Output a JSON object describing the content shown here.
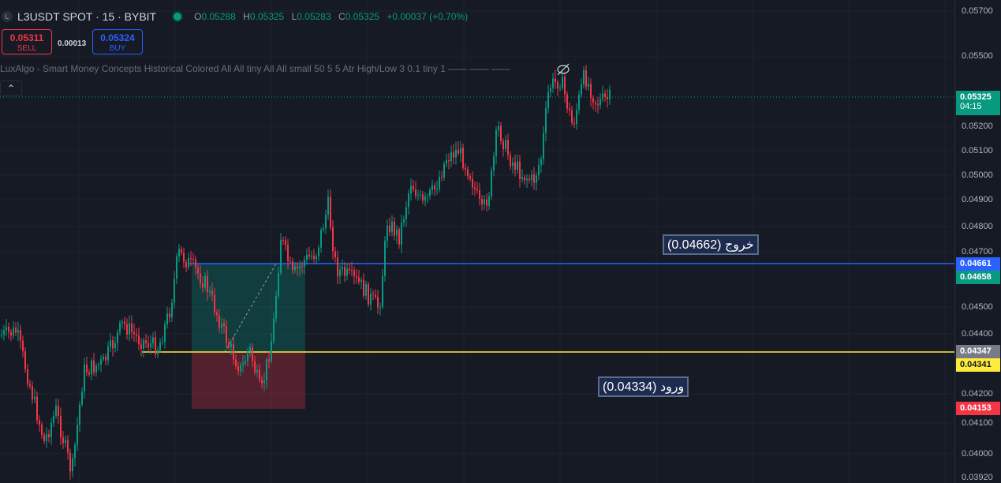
{
  "header": {
    "symbol_icon": "L",
    "title": "L3USDT SPOT · 15 · BYBIT",
    "ohlc": [
      {
        "k": "O",
        "v": "0.05288"
      },
      {
        "k": "H",
        "v": "0.05325"
      },
      {
        "k": "L",
        "v": "0.05283"
      },
      {
        "k": "C",
        "v": "0.05325"
      }
    ],
    "change": "+0.00037 (+0.70%)"
  },
  "trade": {
    "sell_price": "0.05311",
    "sell_label": "SELL",
    "spread": "0.00013",
    "buy_price": "0.05324",
    "buy_label": "BUY"
  },
  "indicator_text": "LuxAlgo - Smart Money Concepts Historical Colored All All tiny All All small 50 5 5 Atr High/Low 3 0.1 tiny 1 —— —— ——",
  "collapse_icon": "chevron-up-icon",
  "annotations": {
    "exit": "(0.04662) خروج",
    "entry": "(0.04334) ورود"
  },
  "price_axis": {
    "ticks": [
      "0.05700",
      "0.05500",
      "0.05200",
      "0.05100",
      "0.05000",
      "0.04900",
      "0.04800",
      "0.04700",
      "0.04500",
      "0.04400",
      "0.04200",
      "0.04100",
      "0.04000",
      "0.03920"
    ],
    "labels": [
      {
        "id": "last",
        "text": "0.05325",
        "sub": "04:15",
        "bg": "#089981",
        "fg": "#ffffff"
      },
      {
        "id": "blue",
        "text": "0.04661",
        "bg": "#2962ff",
        "fg": "#ffffff"
      },
      {
        "id": "tp",
        "text": "0.04658",
        "bg": "#089981",
        "fg": "#ffffff"
      },
      {
        "id": "gray",
        "text": "0.04347",
        "bg": "#787b86",
        "fg": "#ffffff"
      },
      {
        "id": "yellow",
        "text": "0.04341",
        "bg": "#ffeb3b",
        "fg": "#131722"
      },
      {
        "id": "sl",
        "text": "0.04153",
        "bg": "#f23645",
        "fg": "#ffffff"
      }
    ]
  },
  "colors": {
    "background": "#161a25",
    "up": "#089981",
    "down": "#f23645",
    "exit_line": "#2962ff",
    "entry_line": "#ffeb3b"
  }
}
